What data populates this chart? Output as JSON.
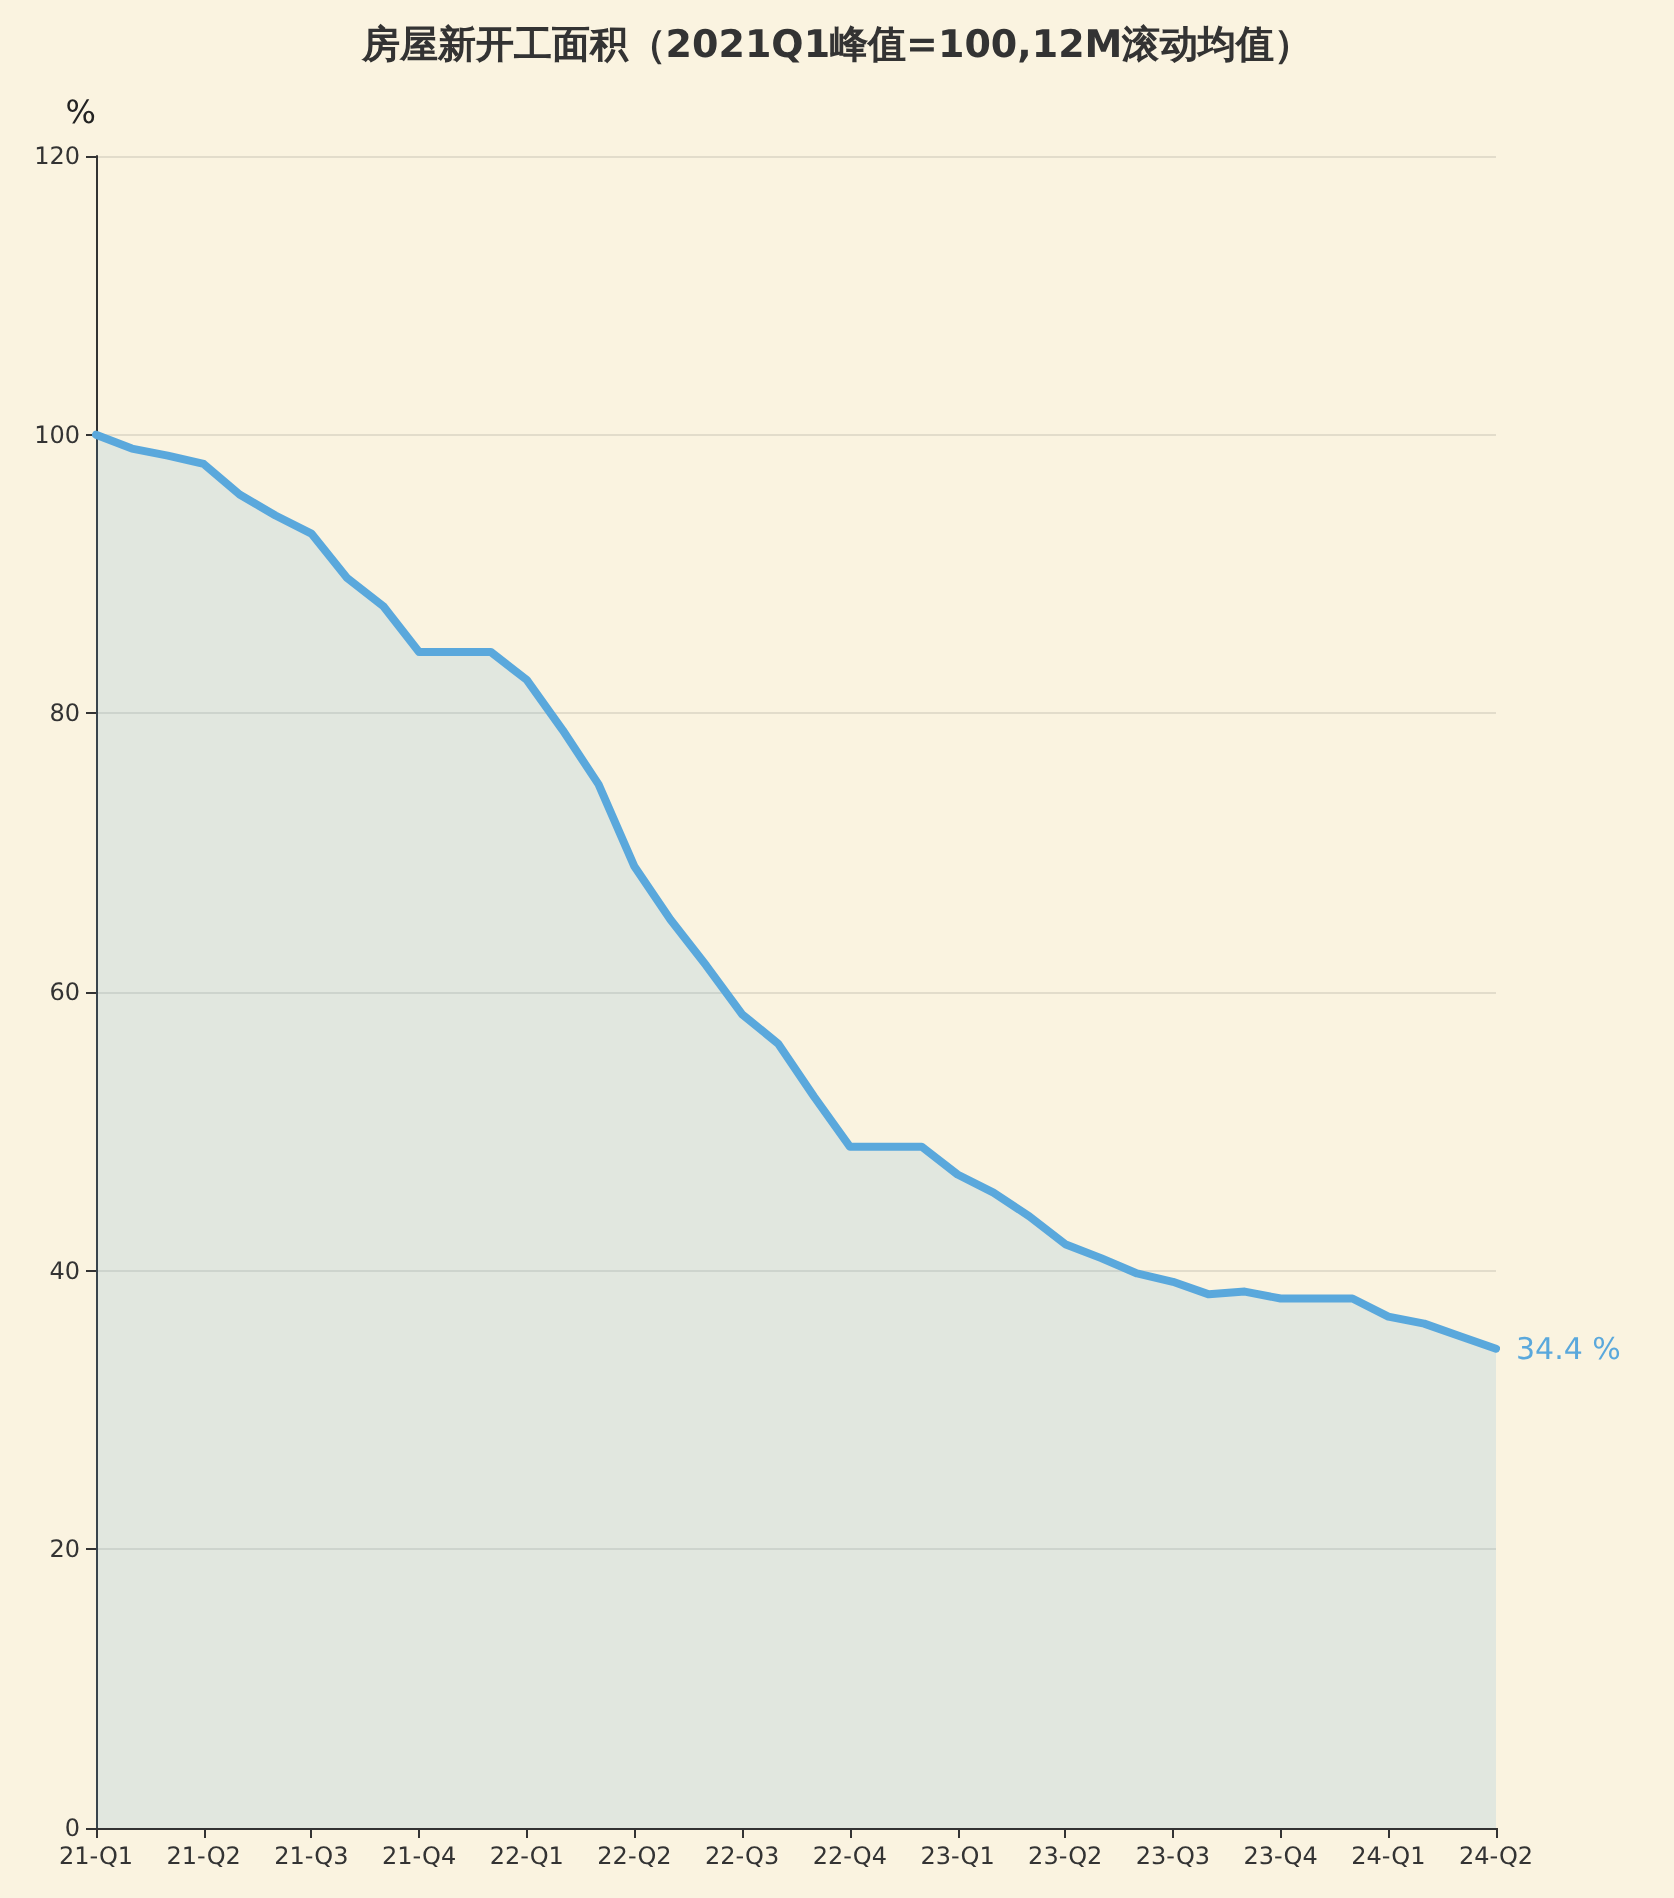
{
  "chart_data": {
    "type": "area",
    "title": "房屋新开工面积（2021Q1峰值=100,12M滚动均值）",
    "ylabel": "%",
    "categories": [
      "21-Q1",
      null,
      null,
      "21-Q2",
      null,
      null,
      "21-Q3",
      null,
      null,
      "21-Q4",
      null,
      null,
      "22-Q1",
      null,
      null,
      "22-Q2",
      null,
      null,
      "22-Q3",
      null,
      null,
      "22-Q4",
      null,
      null,
      "23-Q1",
      null,
      null,
      "23-Q2",
      null,
      null,
      "23-Q3",
      null,
      null,
      "23-Q4",
      null,
      null,
      "24-Q1",
      null,
      null,
      "24-Q2"
    ],
    "series": [
      {
        "color": "#5aa8dc",
        "values": [
          100,
          99.0,
          98.5,
          97.9,
          95.7,
          94.2,
          92.9,
          89.7,
          87.7,
          84.4,
          84.4,
          84.4,
          82.4,
          78.8,
          74.9,
          69.0,
          65.2,
          61.9,
          58.4,
          56.3,
          52.5,
          48.9,
          48.9,
          48.9,
          46.9,
          45.6,
          43.9,
          41.9,
          40.9,
          39.8,
          39.2,
          38.3,
          38.5,
          38.0,
          38.0,
          38.0,
          36.7,
          36.2,
          35.3,
          34.4
        ],
        "value_labels": [
          null,
          null,
          null,
          null,
          null,
          null,
          null,
          null,
          null,
          null,
          null,
          null,
          null,
          null,
          null,
          null,
          null,
          null,
          null,
          null,
          null,
          null,
          null,
          null,
          null,
          null,
          null,
          null,
          null,
          null,
          null,
          null,
          null,
          null,
          null,
          null,
          null,
          null,
          null,
          "34.4 %"
        ]
      }
    ],
    "ylim": [
      0,
      120
    ],
    "yticks": [
      0,
      20,
      40,
      60,
      80,
      100,
      120
    ],
    "grid": "y",
    "marker": "none",
    "line_style": "solid"
  }
}
